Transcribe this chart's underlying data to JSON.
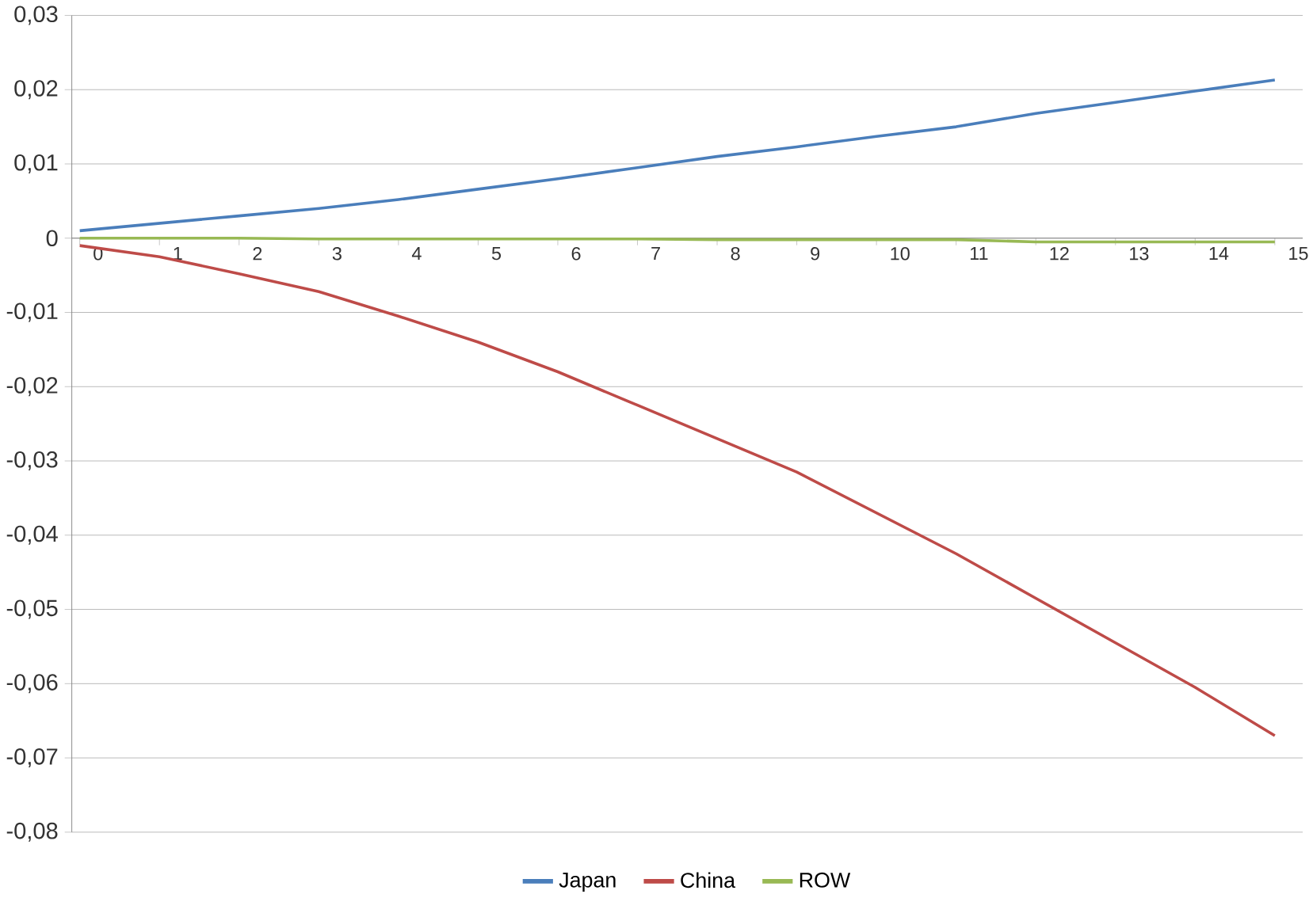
{
  "chart_data": {
    "type": "line",
    "categories": [
      "0",
      "1",
      "2",
      "3",
      "4",
      "5",
      "6",
      "7",
      "8",
      "9",
      "10",
      "11",
      "12",
      "13",
      "14",
      "15"
    ],
    "series": [
      {
        "name": "Japan",
        "color": "#4a7ebb",
        "values": [
          0.001,
          0.002,
          0.003,
          0.004,
          0.0052,
          0.0066,
          0.008,
          0.0095,
          0.011,
          0.0123,
          0.0137,
          0.015,
          0.0168,
          0.0183,
          0.0198,
          0.0213
        ]
      },
      {
        "name": "China",
        "color": "#be4b48",
        "values": [
          -0.001,
          -0.0025,
          -0.0048,
          -0.0072,
          -0.0105,
          -0.014,
          -0.018,
          -0.0225,
          -0.027,
          -0.0315,
          -0.037,
          -0.0425,
          -0.0485,
          -0.0545,
          -0.0605,
          -0.067
        ]
      },
      {
        "name": "ROW",
        "color": "#98b954",
        "values": [
          0,
          0,
          0,
          -0.0001,
          -0.0001,
          -0.0001,
          -0.0001,
          -0.0001,
          -0.0002,
          -0.0002,
          -0.0002,
          -0.0002,
          -0.0005,
          -0.0005,
          -0.0005,
          -0.0005
        ]
      }
    ],
    "ylim": [
      -0.08,
      0.03
    ],
    "yticks": [
      {
        "value": -0.08,
        "label": "-0,08"
      },
      {
        "value": -0.07,
        "label": "-0,07"
      },
      {
        "value": -0.06,
        "label": "-0,06"
      },
      {
        "value": -0.05,
        "label": "-0,05"
      },
      {
        "value": -0.04,
        "label": "-0,04"
      },
      {
        "value": -0.03,
        "label": "-0,03"
      },
      {
        "value": -0.02,
        "label": "-0,02"
      },
      {
        "value": -0.01,
        "label": "-0,01"
      },
      {
        "value": 0,
        "label": "0"
      },
      {
        "value": 0.01,
        "label": "0,01"
      },
      {
        "value": 0.02,
        "label": "0,02"
      },
      {
        "value": 0.03,
        "label": "0,03"
      }
    ],
    "grid": "y",
    "legend": "bottom",
    "marker": "none",
    "line_style": "solid"
  }
}
